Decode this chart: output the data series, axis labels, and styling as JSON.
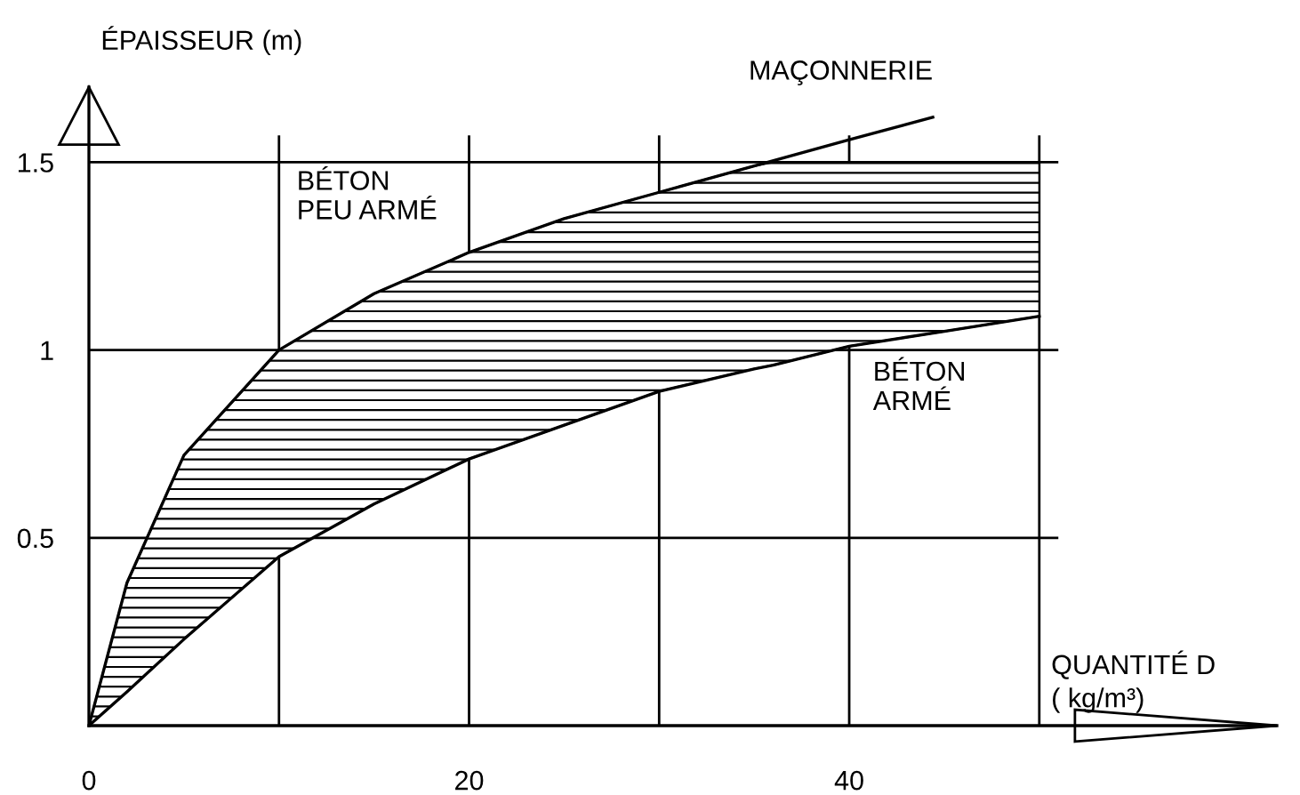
{
  "chart_data": {
    "type": "line",
    "xlabel": "QUANTITÉ D\n( kg/m³)",
    "ylabel": "ÉPAISSEUR (m)",
    "annotations": [
      "BÉTON\nPEU ARMÉ"
    ],
    "series": [
      {
        "name": "MAÇONNERIE",
        "color": "#000000",
        "x": [
          0,
          2,
          5,
          10,
          15,
          20,
          25,
          30,
          35,
          40,
          44.4
        ],
        "values": [
          0,
          0.38,
          0.72,
          1.0,
          1.15,
          1.26,
          1.35,
          1.42,
          1.49,
          1.56,
          1.62
        ]
      },
      {
        "name": "BÉTON\nARMÉ",
        "color": "#000000",
        "x": [
          0,
          2,
          5,
          10,
          15,
          20,
          25,
          30,
          35,
          36,
          40,
          45,
          50
        ],
        "values": [
          0,
          0.09,
          0.23,
          0.45,
          0.59,
          0.71,
          0.8,
          0.89,
          0.95,
          0.96,
          1.01,
          1.05,
          1.09
        ],
        "lower": [
          0,
          0.09,
          0.23,
          0.45,
          0.59,
          0.71,
          0.8,
          0.89,
          0.95,
          0.96,
          1.01,
          1.05,
          1.09
        ],
        "upper": [
          0,
          0.38,
          0.72,
          1.0,
          1.15,
          1.26,
          1.35,
          1.42,
          1.49,
          1.5,
          1.5,
          1.5,
          1.5
        ]
      }
    ],
    "xlim": [
      0,
      62.5
    ],
    "ylim": [
      0,
      1.7
    ],
    "xticks": [
      0,
      {
        "value": 10,
        "label": null
      },
      20,
      {
        "value": 30,
        "label": null
      },
      40,
      {
        "value": 50,
        "label": null
      }
    ],
    "yticks": [
      {
        "value": 0,
        "label": null
      },
      0.5,
      1,
      1.5
    ],
    "grid": true,
    "legend": false,
    "marker": "none",
    "line_style": "solid"
  }
}
